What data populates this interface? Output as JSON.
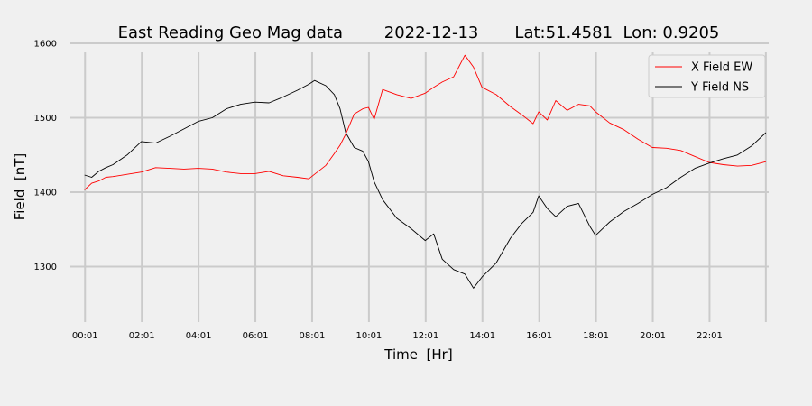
{
  "chart_data": {
    "type": "line",
    "title": "East Reading Geo Mag data        2022-12-13       Lat:51.4581  Lon: 0.9205",
    "xlabel": "Time  [Hr]",
    "ylabel": "Field  [nT]",
    "x_unit": "hour of day",
    "xlim": [
      -0.5,
      24.1
    ],
    "ylim": [
      1240,
      1600
    ],
    "x_tick_values": [
      0.0167,
      2.0167,
      4.0167,
      6.0167,
      8.0167,
      10.0167,
      12.0167,
      14.0167,
      16.0167,
      18.0167,
      20.0167,
      22.0167
    ],
    "x_tick_labels": [
      "00:01",
      "02:01",
      "04:01",
      "06:01",
      "08:01",
      "10:01",
      "12:01",
      "14:01",
      "16:01",
      "18:01",
      "20:01",
      "22:01"
    ],
    "x_extra_gridline": 24.0,
    "y_ticks": [
      1300,
      1400,
      1500,
      1600
    ],
    "grid": true,
    "legend_position": "top-right",
    "series": [
      {
        "name": "X Field EW",
        "color": "#ff0000",
        "x": [
          0.0,
          0.25,
          0.5,
          0.75,
          1.0,
          1.5,
          2.0,
          2.5,
          3.0,
          3.5,
          4.0,
          4.5,
          5.0,
          5.5,
          6.0,
          6.5,
          7.0,
          7.5,
          7.9,
          8.1,
          8.5,
          8.8,
          9.0,
          9.2,
          9.5,
          9.8,
          10.0,
          10.2,
          10.5,
          11.0,
          11.5,
          12.0,
          12.3,
          12.6,
          13.0,
          13.4,
          13.7,
          14.0,
          14.5,
          15.0,
          15.4,
          15.8,
          16.0,
          16.3,
          16.6,
          17.0,
          17.4,
          17.8,
          18.0,
          18.5,
          19.0,
          19.5,
          20.0,
          20.5,
          21.0,
          21.5,
          22.0,
          22.5,
          23.0,
          23.5,
          24.0
        ],
        "values": [
          1403,
          1412,
          1415,
          1420,
          1421,
          1424,
          1427,
          1433,
          1432,
          1431,
          1432,
          1431,
          1427,
          1425,
          1425,
          1428,
          1422,
          1420,
          1418,
          1424,
          1436,
          1452,
          1463,
          1478,
          1505,
          1512,
          1514,
          1498,
          1538,
          1531,
          1526,
          1533,
          1541,
          1548,
          1555,
          1584,
          1568,
          1541,
          1531,
          1515,
          1504,
          1492,
          1508,
          1497,
          1523,
          1510,
          1518,
          1516,
          1508,
          1493,
          1484,
          1471,
          1460,
          1459,
          1456,
          1448,
          1440,
          1437,
          1435,
          1436,
          1441
        ]
      },
      {
        "name": "Y Field NS",
        "color": "#000000",
        "x": [
          0.0,
          0.25,
          0.5,
          0.75,
          1.0,
          1.5,
          2.0,
          2.5,
          3.0,
          3.5,
          4.0,
          4.5,
          5.0,
          5.5,
          6.0,
          6.5,
          7.0,
          7.5,
          7.9,
          8.1,
          8.5,
          8.8,
          9.0,
          9.2,
          9.5,
          9.8,
          10.0,
          10.2,
          10.5,
          11.0,
          11.5,
          12.0,
          12.3,
          12.6,
          13.0,
          13.4,
          13.7,
          14.0,
          14.5,
          15.0,
          15.4,
          15.8,
          16.0,
          16.3,
          16.6,
          17.0,
          17.4,
          17.8,
          18.0,
          18.5,
          19.0,
          19.5,
          20.0,
          20.5,
          21.0,
          21.5,
          22.0,
          22.5,
          23.0,
          23.5,
          24.0
        ],
        "values": [
          1423,
          1420,
          1428,
          1433,
          1437,
          1450,
          1468,
          1466,
          1475,
          1485,
          1495,
          1500,
          1512,
          1518,
          1521,
          1520,
          1528,
          1537,
          1545,
          1550,
          1543,
          1531,
          1512,
          1480,
          1460,
          1455,
          1441,
          1414,
          1390,
          1365,
          1351,
          1335,
          1344,
          1310,
          1296,
          1290,
          1271,
          1286,
          1305,
          1338,
          1358,
          1373,
          1395,
          1378,
          1367,
          1381,
          1385,
          1354,
          1342,
          1360,
          1374,
          1385,
          1397,
          1406,
          1420,
          1432,
          1439,
          1445,
          1450,
          1462,
          1480
        ]
      }
    ]
  }
}
